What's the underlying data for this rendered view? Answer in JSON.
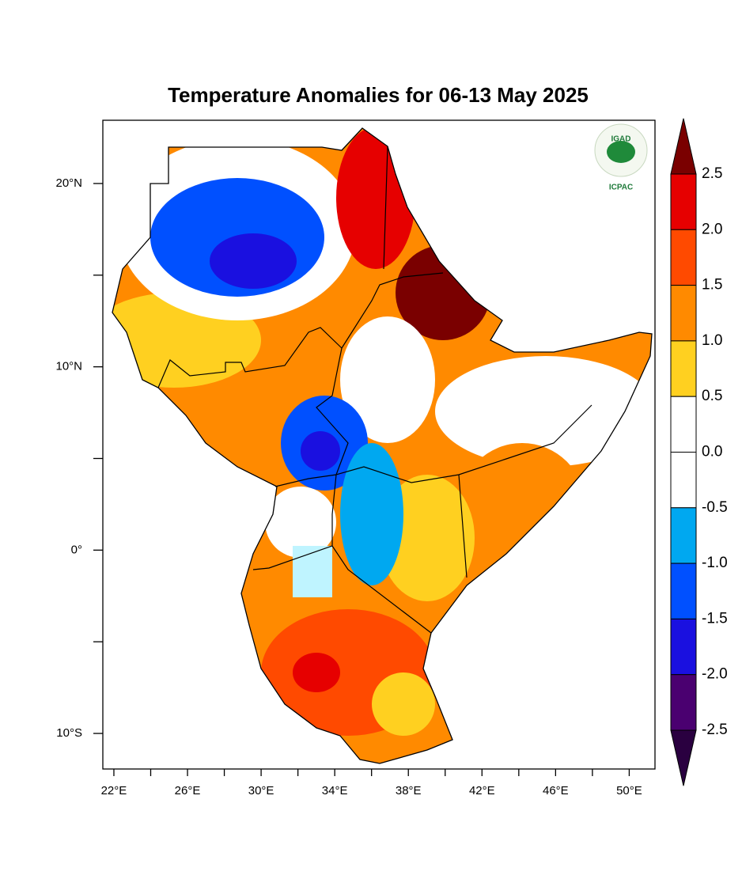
{
  "map": {
    "title": "Temperature Anomalies for 06-13 May 2025",
    "logo": {
      "top": "IGAD",
      "bottom": "ICPAC"
    },
    "xlim": [
      21.4,
      51.4
    ],
    "ylim": [
      -11.94,
      23.45
    ],
    "xticks": [
      {
        "value": 22,
        "label": "22°E"
      },
      {
        "value": 26,
        "label": "26°E"
      },
      {
        "value": 30,
        "label": "30°E"
      },
      {
        "value": 34,
        "label": "34°E"
      },
      {
        "value": 38,
        "label": "38°E"
      },
      {
        "value": 42,
        "label": "42°E"
      },
      {
        "value": 46,
        "label": "46°E"
      },
      {
        "value": 50,
        "label": "50°E"
      }
    ],
    "yticks": [
      {
        "value": 20,
        "label": "20°N"
      },
      {
        "value": 10,
        "label": "10°N"
      },
      {
        "value": 0,
        "label": "0°"
      },
      {
        "value": -10,
        "label": "10°S"
      }
    ]
  },
  "colorbar": {
    "levels": [
      {
        "value": 2.5,
        "label": "2.5"
      },
      {
        "value": 2,
        "label": "2.0"
      },
      {
        "value": 1.5,
        "label": "1.5"
      },
      {
        "value": 1,
        "label": "1.0"
      },
      {
        "value": 0.5,
        "label": "0.5"
      },
      {
        "value": 0,
        "label": "0.0"
      },
      {
        "value": -0.5,
        "label": "-0.5"
      },
      {
        "value": -1,
        "label": "-1.0"
      },
      {
        "value": -1.5,
        "label": "-1.5"
      },
      {
        "value": -2,
        "label": "-2.0"
      },
      {
        "value": -2.5,
        "label": "-2.5"
      }
    ],
    "colors": [
      "#7a0000",
      "#e60000",
      "#ff4a00",
      "#ff8a00",
      "#ffd020",
      "#ffffff",
      "#ffffff",
      "#00a8f0",
      "#0050ff",
      "#1a10e0",
      "#4a0070",
      "#2a0040"
    ]
  }
}
